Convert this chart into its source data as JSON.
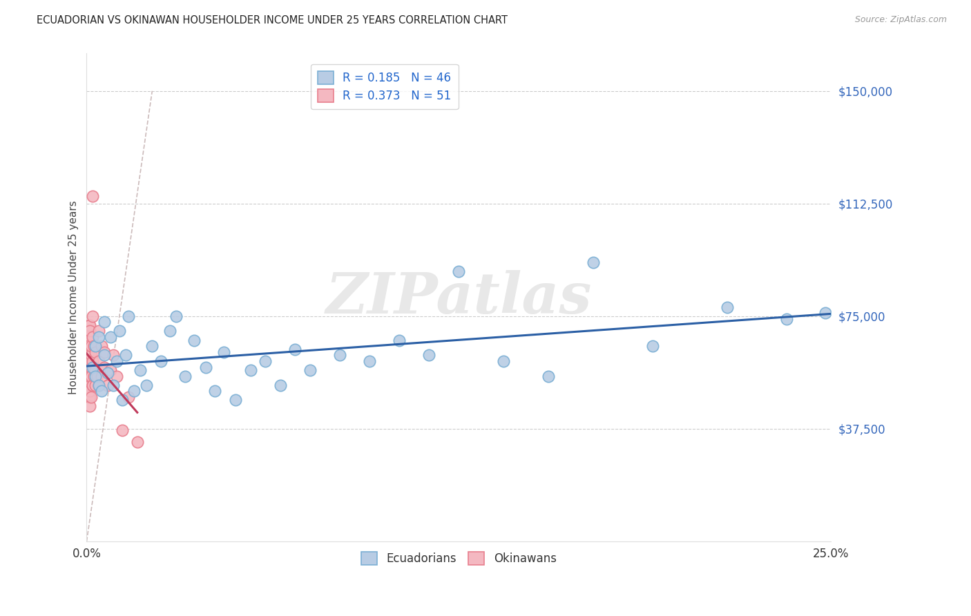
{
  "title": "ECUADORIAN VS OKINAWAN HOUSEHOLDER INCOME UNDER 25 YEARS CORRELATION CHART",
  "source": "Source: ZipAtlas.com",
  "ylabel_label": "Householder Income Under 25 years",
  "ylim": [
    0,
    162500
  ],
  "xlim": [
    0.0,
    0.25
  ],
  "background_color": "#ffffff",
  "grid_color": "#cccccc",
  "watermark": "ZIPatlas",
  "legend1_R": "0.185",
  "legend1_N": "46",
  "legend2_R": "0.373",
  "legend2_N": "51",
  "blue_scatter_face": "#b8cce4",
  "blue_scatter_edge": "#7bafd4",
  "pink_scatter_face": "#f4b8c1",
  "pink_scatter_edge": "#e87f8e",
  "line_blue": "#2b5fa5",
  "line_pink": "#c0395a",
  "ref_line_color": "#ccbbbb",
  "ecuadorian_x": [
    0.002,
    0.003,
    0.003,
    0.004,
    0.004,
    0.005,
    0.006,
    0.006,
    0.007,
    0.008,
    0.009,
    0.01,
    0.011,
    0.012,
    0.013,
    0.014,
    0.016,
    0.018,
    0.02,
    0.022,
    0.025,
    0.028,
    0.03,
    0.033,
    0.036,
    0.04,
    0.043,
    0.046,
    0.05,
    0.055,
    0.06,
    0.065,
    0.07,
    0.075,
    0.085,
    0.095,
    0.105,
    0.115,
    0.125,
    0.14,
    0.155,
    0.17,
    0.19,
    0.215,
    0.235,
    0.248
  ],
  "ecuadorian_y": [
    58000,
    55000,
    65000,
    52000,
    68000,
    50000,
    62000,
    73000,
    56000,
    68000,
    52000,
    60000,
    70000,
    47000,
    62000,
    75000,
    50000,
    57000,
    52000,
    65000,
    60000,
    70000,
    75000,
    55000,
    67000,
    58000,
    50000,
    63000,
    47000,
    57000,
    60000,
    52000,
    64000,
    57000,
    62000,
    60000,
    67000,
    62000,
    90000,
    60000,
    55000,
    93000,
    65000,
    78000,
    74000,
    76000
  ],
  "okinawan_x": [
    0.0005,
    0.0005,
    0.0005,
    0.0005,
    0.0007,
    0.0007,
    0.0008,
    0.0008,
    0.001,
    0.001,
    0.001,
    0.001,
    0.001,
    0.001,
    0.001,
    0.001,
    0.001,
    0.001,
    0.0015,
    0.0015,
    0.0015,
    0.0015,
    0.0015,
    0.002,
    0.002,
    0.002,
    0.002,
    0.002,
    0.0025,
    0.0025,
    0.0025,
    0.003,
    0.003,
    0.003,
    0.0035,
    0.004,
    0.004,
    0.004,
    0.005,
    0.005,
    0.005,
    0.006,
    0.006,
    0.007,
    0.008,
    0.009,
    0.01,
    0.012,
    0.014,
    0.017,
    0.002
  ],
  "okinawan_y": [
    58000,
    62000,
    55000,
    68000,
    52000,
    65000,
    48000,
    72000,
    58000,
    62000,
    52000,
    48000,
    72000,
    55000,
    60000,
    45000,
    70000,
    50000,
    58000,
    62000,
    48000,
    55000,
    65000,
    60000,
    68000,
    52000,
    75000,
    52000,
    58000,
    55000,
    65000,
    57000,
    63000,
    52000,
    55000,
    60000,
    70000,
    52000,
    57000,
    65000,
    55000,
    58000,
    63000,
    52000,
    57000,
    62000,
    55000,
    37000,
    48000,
    33000,
    115000
  ],
  "ref_line_x": [
    0.0,
    0.022
  ],
  "ref_line_y": [
    0,
    150000
  ]
}
